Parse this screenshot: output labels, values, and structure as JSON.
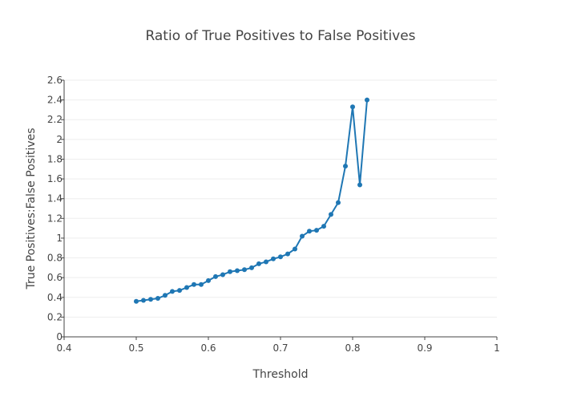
{
  "chart_data": {
    "type": "line",
    "title": "Ratio of True Positives to False Positives",
    "xlabel": "Threshold",
    "ylabel": "True Positives:False Positives",
    "xlim": [
      0.4,
      1.0
    ],
    "ylim": [
      0,
      2.6
    ],
    "xticks": [
      0.4,
      0.5,
      0.6,
      0.7,
      0.8,
      0.9,
      1
    ],
    "xtick_labels": [
      "0.4",
      "0.5",
      "0.6",
      "0.7",
      "0.8",
      "0.9",
      "1"
    ],
    "yticks": [
      0,
      0.2,
      0.4,
      0.6,
      0.8,
      1,
      1.2,
      1.4,
      1.6,
      1.8,
      2,
      2.2,
      2.4,
      2.6
    ],
    "ytick_labels": [
      "0",
      "0.2",
      "0.4",
      "0.6",
      "0.8",
      "1",
      "1.2",
      "1.4",
      "1.6",
      "1.8",
      "2",
      "2.2",
      "2.4",
      "2.6"
    ],
    "grid": true,
    "line_color": "#1f77b4",
    "series": [
      {
        "x": [
          0.5,
          0.51,
          0.52,
          0.53,
          0.54,
          0.55,
          0.56,
          0.57,
          0.58,
          0.59,
          0.6,
          0.61,
          0.62,
          0.63,
          0.64,
          0.65,
          0.66,
          0.67,
          0.68,
          0.69,
          0.7,
          0.71,
          0.72,
          0.73,
          0.74,
          0.75,
          0.76,
          0.77,
          0.78,
          0.79,
          0.8,
          0.81,
          0.82
        ],
        "y": [
          0.36,
          0.37,
          0.38,
          0.39,
          0.42,
          0.46,
          0.47,
          0.5,
          0.53,
          0.53,
          0.57,
          0.61,
          0.63,
          0.66,
          0.67,
          0.68,
          0.7,
          0.74,
          0.76,
          0.79,
          0.81,
          0.84,
          0.89,
          1.02,
          1.07,
          1.08,
          1.12,
          1.24,
          1.36,
          1.73,
          2.33,
          1.54,
          2.4
        ]
      }
    ]
  }
}
